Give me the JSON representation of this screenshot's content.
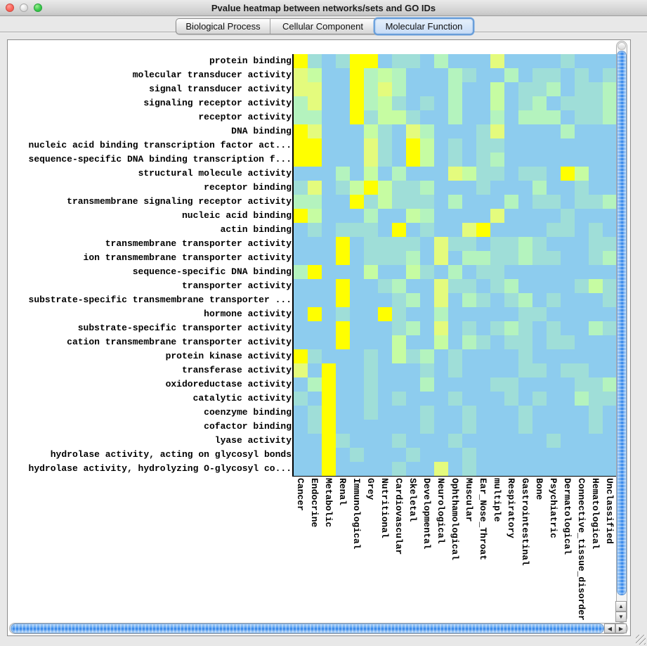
{
  "window": {
    "title": "Pvalue heatmap between networks/sets and GO IDs",
    "traffic_lights": {
      "close_color": "#F96156",
      "minimize_color": "#D9D9D9",
      "zoom_color": "#34C748"
    }
  },
  "tabs": [
    {
      "label": "Biological Process",
      "selected": false
    },
    {
      "label": "Cellular Component",
      "selected": false
    },
    {
      "label": "Molecular Function",
      "selected": true
    }
  ],
  "icons": {
    "up_arrow": "▲",
    "down_arrow": "▼",
    "left_arrow": "◀",
    "right_arrow": "▶"
  },
  "chart_data": {
    "type": "heatmap",
    "title": "Pvalue heatmap between networks/sets and GO IDs",
    "value_legend": "0=bright yellow (strongest p-value) to 5=light blue (weakest)",
    "palette": {
      "0": "#FFFF00",
      "1": "#E4FB7D",
      "2": "#C6FCA2",
      "3": "#B4F3BE",
      "4": "#9FDED8",
      "5": "#8DCCEE"
    },
    "rows": [
      "protein binding",
      "molecular transducer activity",
      "signal transducer activity",
      "signaling receptor activity",
      "receptor activity",
      "DNA binding",
      "nucleic acid binding transcription factor act...",
      "sequence-specific DNA binding transcription f...",
      "structural molecule activity",
      "receptor binding",
      "transmembrane signaling receptor activity",
      "nucleic acid binding",
      "actin binding",
      "transmembrane transporter activity",
      "ion transmembrane transporter activity",
      "sequence-specific DNA binding",
      "transporter activity",
      "substrate-specific transmembrane transporter ...",
      "hormone activity",
      "substrate-specific transporter activity",
      "cation transmembrane transporter activity",
      "protein kinase activity",
      "transferase activity",
      "oxidoreductase activity",
      "catalytic activity",
      "coenzyme binding",
      "cofactor binding",
      "lyase activity",
      "hydrolase activity, acting on glycosyl bonds",
      "hydrolase activity, hydrolyzing O-glycosyl co..."
    ],
    "columns": [
      "Cancer",
      "Endocrine",
      "Metabolic",
      "Renal",
      "Immunological",
      "Grey",
      "Nutritional",
      "Cardiovascular",
      "Skeletal",
      "Developmental",
      "Neurological",
      "Ophthamological",
      "Muscular",
      "Ear_Nose_Throat",
      "multiple",
      "Respiratory",
      "Gastrointestinal",
      "Bone",
      "Psychiatric",
      "Dermatological",
      "Connective_tissue_disorder",
      "Hematological",
      "Unclassified"
    ],
    "matrix": [
      "04540054453555155554555",
      "12550323555345535445454",
      "11550313555355254435443",
      "31550324545355254354443",
      "33550422455355353335443",
      "01555245135554155553555",
      "00555145025454455555555",
      "00555145025454355555555",
      "55535253555124454450255",
      "41542024435554555355455",
      "33550424445355535445443",
      "02555355235555155554555",
      "54544450545510555544545",
      "55505444451445443455544",
      "55505444351533443445543",
      "30555255245354455555555",
      "55505543551445435555424",
      "55505554351534543545554",
      "50545504553555554455555",
      "55505554351545434545534",
      "55505552552534544544555",
      "04555452435455554555555",
      "15055455545455554454455",
      "53055455535555445555443",
      "45055454555455545455344",
      "54055455545545554555545",
      "54055555545545554555545",
      "55045554555455555545555",
      "55054555455545555555555",
      "55055554551545555555555"
    ]
  }
}
